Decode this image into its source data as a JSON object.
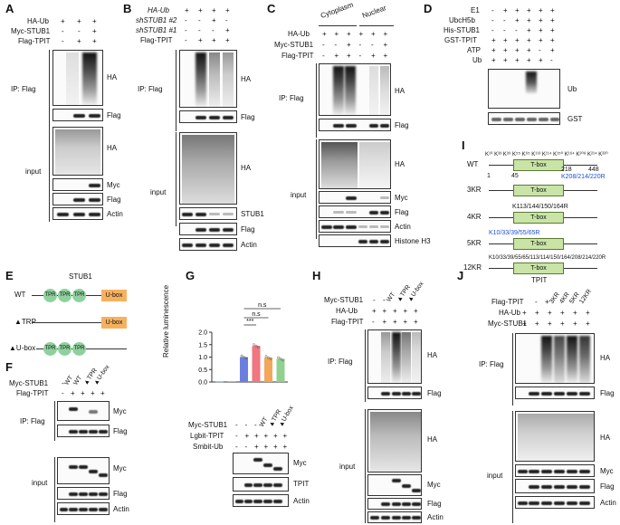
{
  "panels": {
    "A": {
      "label": "A",
      "rows": [
        {
          "name": "HA-Ub",
          "marks": [
            "+",
            "+",
            "+"
          ]
        },
        {
          "name": "Myc-STUB1",
          "marks": [
            "-",
            "-",
            "+"
          ]
        },
        {
          "name": "Flag-TPIT",
          "marks": [
            "-",
            "+",
            "+"
          ]
        }
      ],
      "ip_label": "IP: Flag",
      "input_label": "input",
      "blots": [
        "HA",
        "Flag",
        "HA",
        "Myc",
        "Flag",
        "Actin"
      ]
    },
    "B": {
      "label": "B",
      "rows": [
        {
          "name": "HA-Ub",
          "marks": [
            "+",
            "+",
            "+",
            "+"
          ]
        },
        {
          "name": "shSTUB1 #2",
          "marks": [
            "-",
            "-",
            "+",
            "-"
          ]
        },
        {
          "name": "shSTUB1 #1",
          "marks": [
            "-",
            "-",
            "-",
            "+"
          ]
        },
        {
          "name": "Flag-TPIT",
          "marks": [
            "-",
            "+",
            "+",
            "+"
          ]
        }
      ],
      "ip_label": "IP: Flag",
      "input_label": "input",
      "blots": [
        "HA",
        "Flag",
        "HA",
        "STUB1",
        "Flag",
        "Actin"
      ]
    },
    "C": {
      "label": "C",
      "fractions": [
        "Cytoplasm",
        "Nuclear"
      ],
      "rows": [
        {
          "name": "HA-Ub",
          "marks": [
            "+",
            "+",
            "+",
            "+",
            "+",
            "+"
          ]
        },
        {
          "name": "Myc-STUB1",
          "marks": [
            "-",
            "-",
            "+",
            "-",
            "-",
            "+"
          ]
        },
        {
          "name": "Flag-TPIT",
          "marks": [
            "-",
            "+",
            "+",
            "-",
            "+",
            "+"
          ]
        }
      ],
      "ip_label": "IP: Flag",
      "input_label": "input",
      "blots": [
        "HA",
        "Flag",
        "HA",
        "Myc",
        "Flag",
        "Actin",
        "Histone H3"
      ]
    },
    "D": {
      "label": "D",
      "rows": [
        {
          "name": "E1",
          "marks": [
            "-",
            "+",
            "+",
            "+",
            "+",
            "+"
          ]
        },
        {
          "name": "UbcH5b",
          "marks": [
            "-",
            "-",
            "+",
            "+",
            "+",
            "+"
          ]
        },
        {
          "name": "His-STUB1",
          "marks": [
            "-",
            "-",
            "-",
            "+",
            "+",
            "+"
          ]
        },
        {
          "name": "GST-TPIT",
          "marks": [
            "+",
            "+",
            "+",
            "+",
            "+",
            "+"
          ]
        },
        {
          "name": "ATP",
          "marks": [
            "+",
            "+",
            "+",
            "+",
            "-",
            "+"
          ]
        },
        {
          "name": "Ub",
          "marks": [
            "+",
            "+",
            "+",
            "+",
            "+",
            "-"
          ]
        }
      ],
      "blots": [
        "Ub",
        "GST"
      ]
    },
    "E": {
      "label": "E",
      "title": "STUB1",
      "constructs": [
        "WT",
        "▲TRP",
        "▲U-box"
      ],
      "tpr_label": "TPR",
      "ubox_label": "U-box"
    },
    "F": {
      "label": "F",
      "rows": [
        {
          "name": "Myc-STUB1",
          "marks": [
            "-",
            "WT",
            "WT",
            "▲TPR",
            "▲U-box"
          ]
        },
        {
          "name": "Flag-TPIT",
          "marks": [
            "-",
            "+",
            "+",
            "+",
            "+"
          ]
        }
      ],
      "ip_label": "IP: Flag",
      "input_label": "input",
      "blots": [
        "Myc",
        "Flag",
        "Myc",
        "Flag",
        "Actin"
      ]
    },
    "G": {
      "label": "G",
      "sig_labels": [
        "n.s",
        "n.s",
        "***"
      ],
      "rows": [
        {
          "name": "Myc-STUB1",
          "marks": [
            "-",
            "-",
            "-",
            "WT",
            "▲TPR",
            "▲U-box"
          ]
        },
        {
          "name": "Lgbit-TPIT",
          "marks": [
            "-",
            "+",
            "+",
            "+",
            "+",
            "+"
          ]
        },
        {
          "name": "Smbit-Ub",
          "marks": [
            "-",
            "-",
            "+",
            "+",
            "+",
            "+"
          ]
        }
      ],
      "blots": [
        "Myc",
        "TPIT",
        "Actin"
      ]
    },
    "H": {
      "label": "H",
      "rows": [
        {
          "name": "Myc-STUB1",
          "marks": [
            "-",
            "-",
            "WT",
            "▲TPR",
            "▲U-box"
          ]
        },
        {
          "name": "HA-Ub",
          "marks": [
            "+",
            "+",
            "+",
            "+",
            "+"
          ]
        },
        {
          "name": "Flag-TPIT",
          "marks": [
            "-",
            "+",
            "+",
            "+",
            "+"
          ]
        }
      ],
      "ip_label": "IP: Flag",
      "input_label": "input",
      "blots": [
        "HA",
        "Flag",
        "HA",
        "Myc",
        "Flag",
        "Actin"
      ]
    },
    "I": {
      "label": "I",
      "lysine_header": "K¹⁰ K³³ K³⁹ K⁵⁵ K⁶⁵   K¹¹³ K¹¹⁴ K¹⁵⁰ K¹⁶⁴ K²⁰⁸ K²¹⁴ K²²⁰",
      "positions": [
        "1",
        "45",
        "218",
        "448"
      ],
      "tbox_label": "T-box",
      "constructs": [
        {
          "name": "WT",
          "note": "K208/214/220R",
          "note_color": "#1f4fd1"
        },
        {
          "name": "3KR",
          "note": "",
          "note_color": "#111"
        },
        {
          "name": "4KR",
          "note": "K113/144/150/164R",
          "note_color": "#111"
        },
        {
          "name": "5KR",
          "note": "K10/33/39/55/65R",
          "note_color": "#1f4fd1"
        },
        {
          "name": "12KR",
          "note": "K10/33/39/55/65/113/114/150/164/208/214/220R",
          "note_color": "#111"
        }
      ],
      "protein": "TPIT"
    },
    "J": {
      "label": "J",
      "rows": [
        {
          "name": "Flag-TPIT",
          "marks": [
            "-",
            "+",
            "3KR",
            "4KR",
            "5KR",
            "12KR"
          ]
        },
        {
          "name": "HA-Ub",
          "marks": [
            "+",
            "+",
            "+",
            "+",
            "+",
            "+"
          ]
        },
        {
          "name": "Myc-STUB1",
          "marks": [
            "+",
            "+",
            "+",
            "+",
            "+",
            "+"
          ]
        }
      ],
      "ip_label": "IP: Flag",
      "input_label": "input",
      "blots": [
        "HA",
        "Flag",
        "HA",
        "Myc",
        "Flag",
        "Actin"
      ]
    }
  },
  "chart_data": {
    "type": "bar",
    "title": "",
    "xlabel": "",
    "ylabel": "Relative luminescence",
    "ylim": [
      0,
      2.0
    ],
    "yticks": [
      "0.0",
      "0.5",
      "1.0",
      "1.5",
      "2.0"
    ],
    "categories": [
      "1",
      "2",
      "3",
      "4",
      "5",
      "6"
    ],
    "values": [
      0.02,
      0.03,
      1.0,
      1.45,
      0.98,
      0.93
    ],
    "bar_colors": [
      "#6c8cd5",
      "#d98cd5",
      "#6c7fe0",
      "#f0767f",
      "#f3a75a",
      "#8fd18f"
    ],
    "grid": false
  },
  "colors": {
    "tpr": "#8fd19e",
    "ubox": "#f6b15f",
    "tbox": "#c9e4a6",
    "note_blue": "#1f4fd1"
  }
}
